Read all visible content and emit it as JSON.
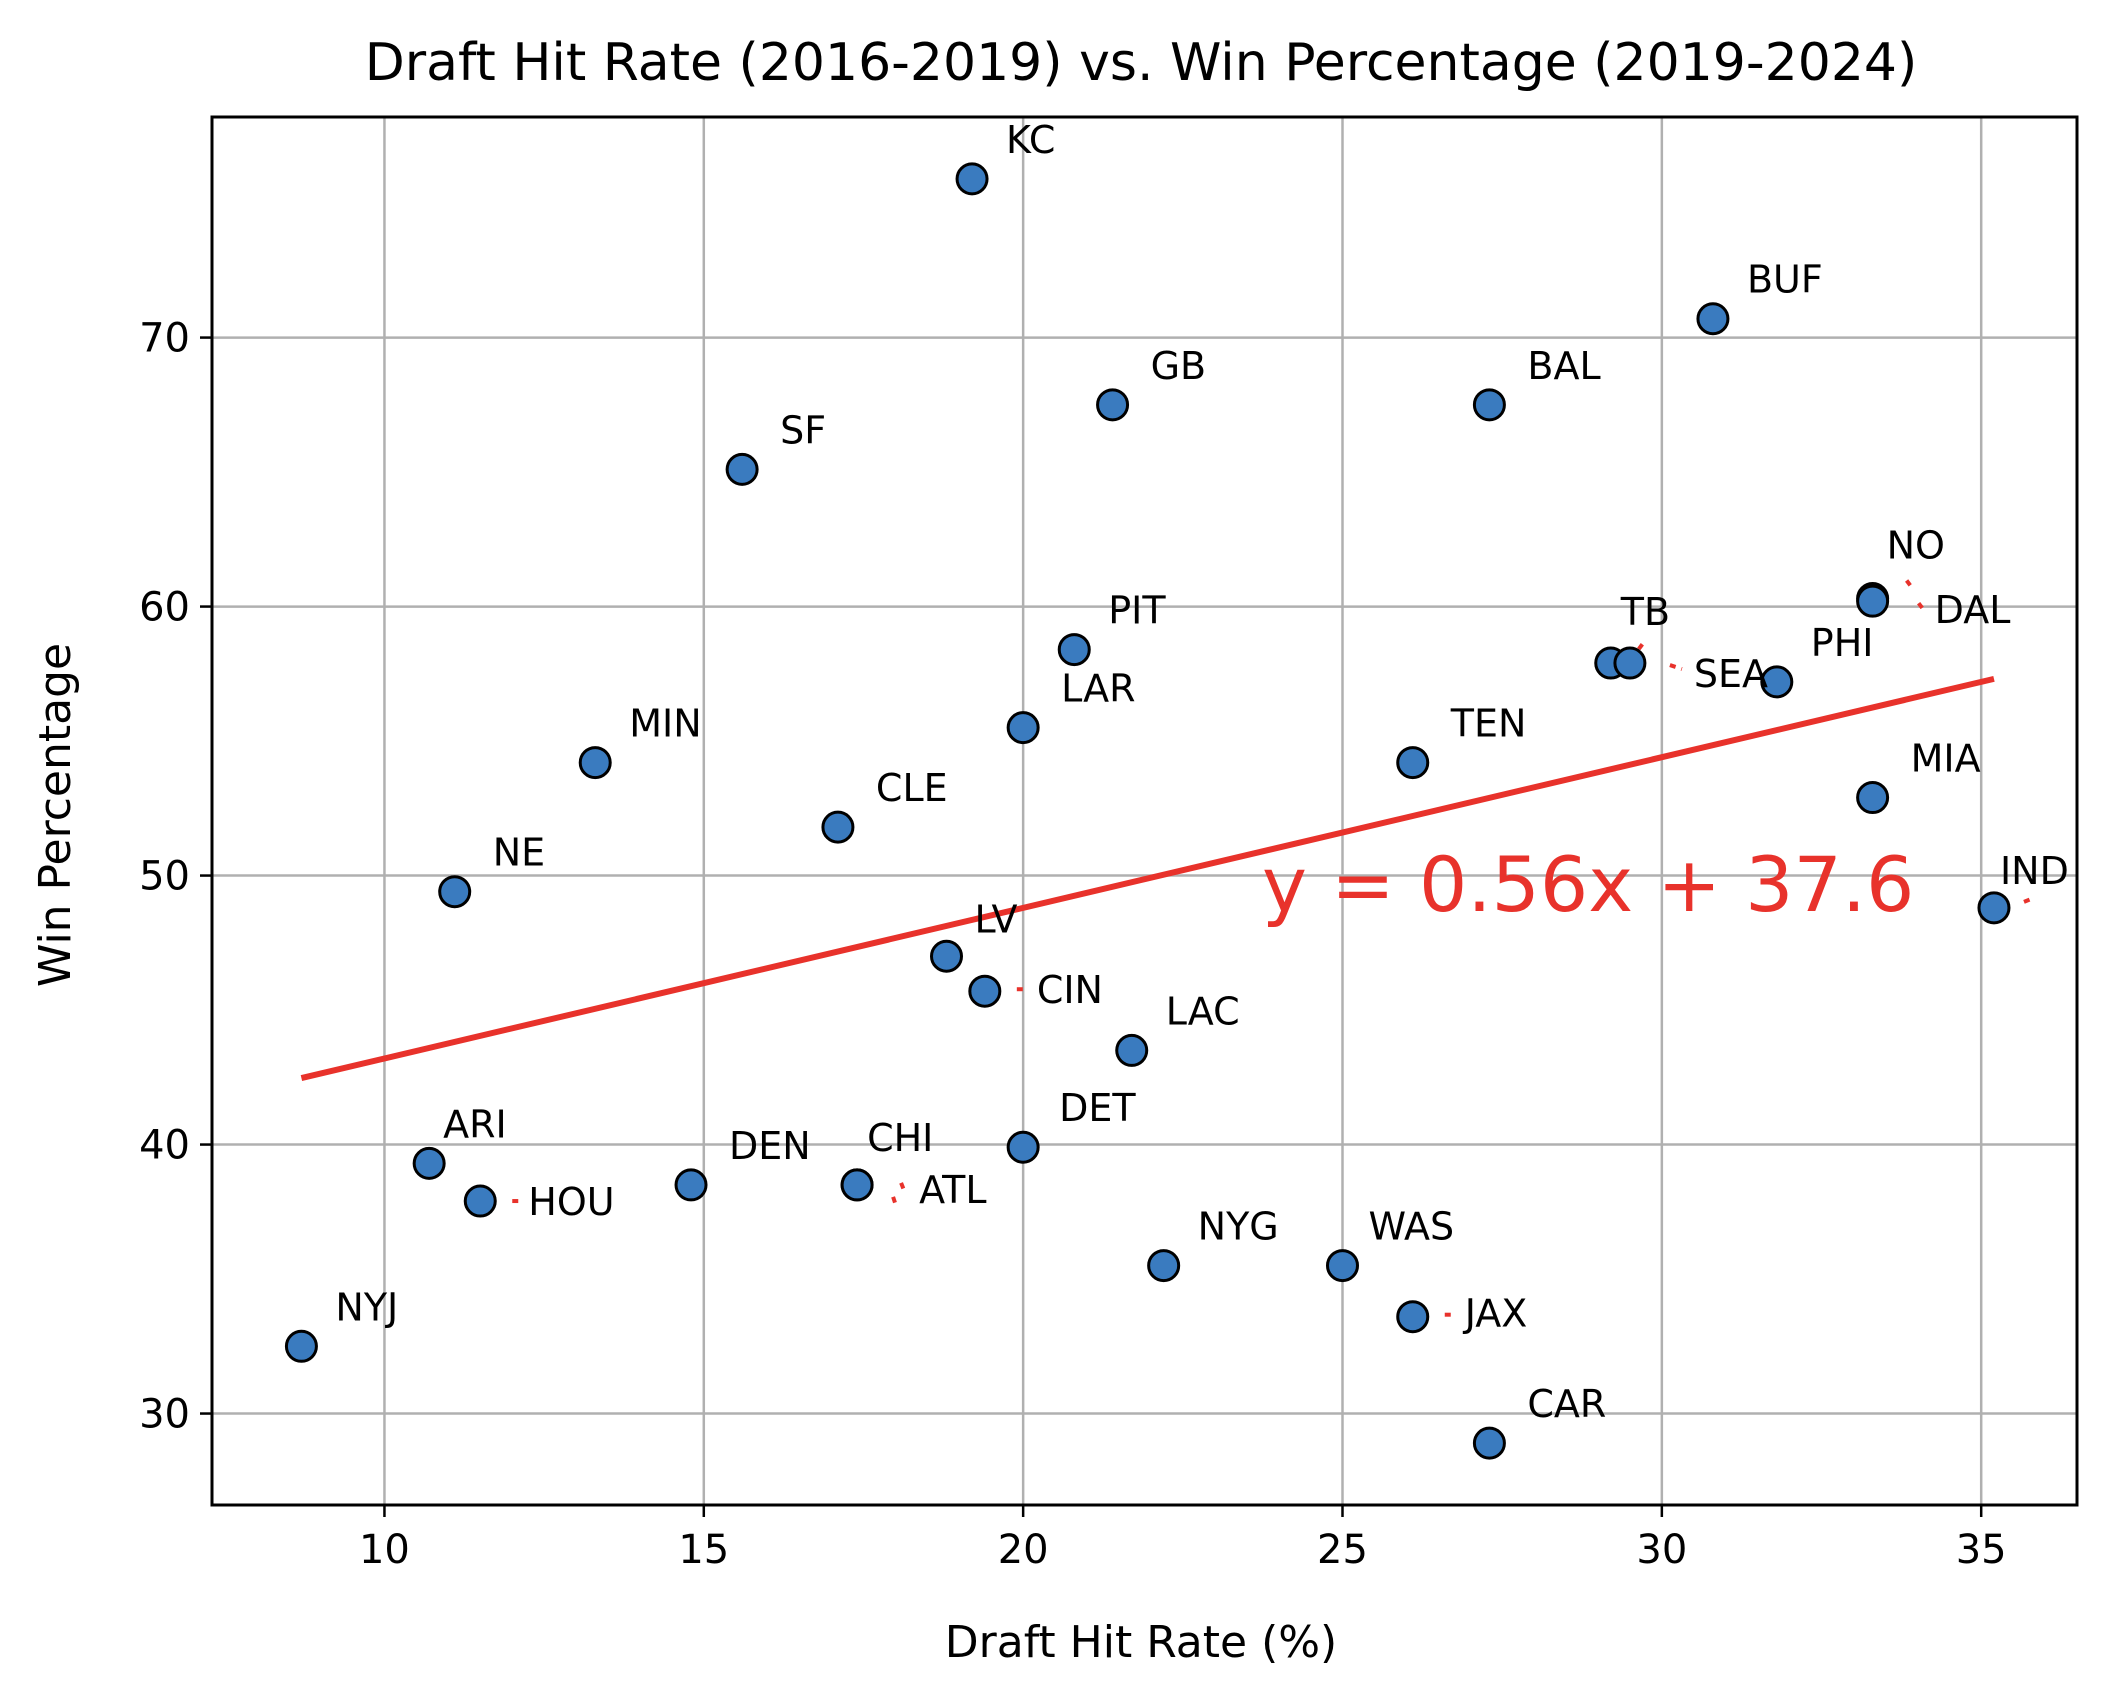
{
  "chart_data": {
    "type": "scatter",
    "title": "Draft Hit Rate (2016-2019) vs. Win Percentage (2019-2024)",
    "xlabel": "Draft Hit Rate (%)",
    "ylabel": "Win Percentage",
    "xlim": [
      7.3,
      36.5
    ],
    "ylim": [
      26.6,
      78.2
    ],
    "xticks": [
      10,
      15,
      20,
      25,
      30,
      35
    ],
    "yticks": [
      30,
      40,
      50,
      60,
      70
    ],
    "grid": true,
    "colors": {
      "point": "#3a7bbf",
      "trend": "#e8322b",
      "grid": "#b0b0b0"
    },
    "points": [
      {
        "label": "KC",
        "x": 19.2,
        "y": 75.9
      },
      {
        "label": "BUF",
        "x": 30.8,
        "y": 70.7
      },
      {
        "label": "GB",
        "x": 21.4,
        "y": 67.5
      },
      {
        "label": "BAL",
        "x": 27.3,
        "y": 67.5
      },
      {
        "label": "SF",
        "x": 15.6,
        "y": 65.1
      },
      {
        "label": "NO",
        "x": 33.3,
        "y": 60.3
      },
      {
        "label": "DAL",
        "x": 33.3,
        "y": 60.2
      },
      {
        "label": "PIT",
        "x": 20.8,
        "y": 58.4
      },
      {
        "label": "TB",
        "x": 29.2,
        "y": 57.9
      },
      {
        "label": "SEA",
        "x": 29.5,
        "y": 57.9
      },
      {
        "label": "PHI",
        "x": 31.8,
        "y": 57.2
      },
      {
        "label": "LAR",
        "x": 20.0,
        "y": 55.5
      },
      {
        "label": "MIN",
        "x": 13.3,
        "y": 54.2
      },
      {
        "label": "TEN",
        "x": 26.1,
        "y": 54.2
      },
      {
        "label": "MIA",
        "x": 33.3,
        "y": 52.9
      },
      {
        "label": "CLE",
        "x": 17.1,
        "y": 51.8
      },
      {
        "label": "NE",
        "x": 11.1,
        "y": 49.4
      },
      {
        "label": "IND",
        "x": 35.2,
        "y": 48.8
      },
      {
        "label": "LV",
        "x": 18.8,
        "y": 47.0
      },
      {
        "label": "CIN",
        "x": 19.4,
        "y": 45.7
      },
      {
        "label": "LAC",
        "x": 21.7,
        "y": 43.5
      },
      {
        "label": "DET",
        "x": 20.0,
        "y": 39.9
      },
      {
        "label": "ARI",
        "x": 10.7,
        "y": 39.3
      },
      {
        "label": "DEN",
        "x": 14.8,
        "y": 38.5
      },
      {
        "label": "CHI",
        "x": 17.4,
        "y": 38.5
      },
      {
        "label": "ATL",
        "x": 17.4,
        "y": 38.5
      },
      {
        "label": "HOU",
        "x": 11.5,
        "y": 37.9
      },
      {
        "label": "NYG",
        "x": 22.2,
        "y": 35.5
      },
      {
        "label": "WAS",
        "x": 25.0,
        "y": 35.5
      },
      {
        "label": "JAX",
        "x": 26.1,
        "y": 33.6
      },
      {
        "label": "NYJ",
        "x": 8.7,
        "y": 32.5
      },
      {
        "label": "CAR",
        "x": 27.3,
        "y": 28.9
      }
    ],
    "trendline": {
      "equation": "y = 0.56x + 37.6",
      "slope": 0.56,
      "intercept": 37.6,
      "x_range": [
        8.7,
        35.2
      ]
    }
  }
}
